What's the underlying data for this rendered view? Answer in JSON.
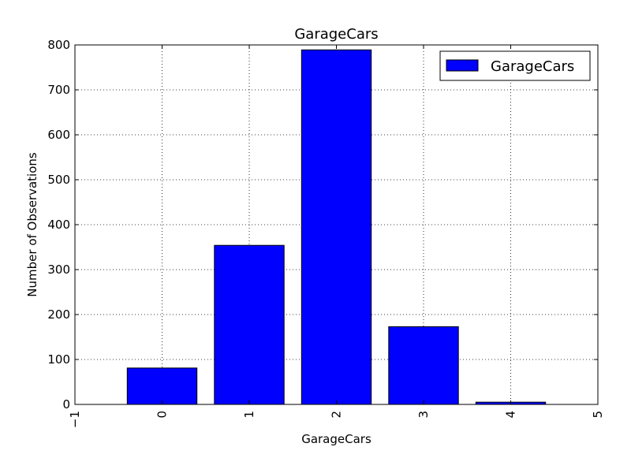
{
  "chart_data": {
    "type": "bar",
    "title": "GarageCars",
    "xlabel": "GarageCars",
    "ylabel": "Number of Observations",
    "categories": [
      0,
      1,
      2,
      3,
      4
    ],
    "series": [
      {
        "name": "GarageCars",
        "values": [
          81,
          354,
          789,
          173,
          5
        ]
      }
    ],
    "xlim": [
      -1,
      5
    ],
    "ylim": [
      0,
      800
    ],
    "xticks": [
      -1,
      0,
      1,
      2,
      3,
      4,
      5
    ],
    "yticks": [
      0,
      100,
      200,
      300,
      400,
      500,
      600,
      700,
      800
    ],
    "xtick_labels": [
      "−1",
      "0",
      "1",
      "2",
      "3",
      "4",
      "5"
    ],
    "grid": true,
    "legend_position": "top-right",
    "bar_color": "#0000ff",
    "edge_color": "#000000"
  }
}
